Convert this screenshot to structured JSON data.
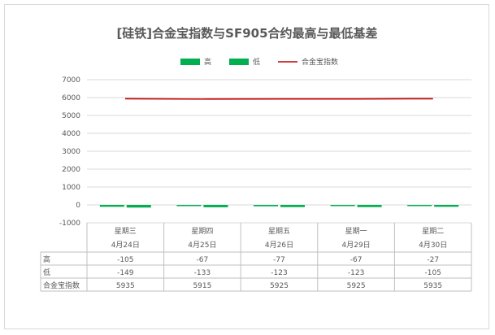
{
  "chart_data": {
    "type": "bar",
    "title": "[硅铁]合金宝指数与SF905合约最高与最低基差",
    "categories": [
      "星期三",
      "星期四",
      "星期五",
      "星期一",
      "星期二"
    ],
    "dates": [
      "4月24日",
      "4月25日",
      "4月26日",
      "4月29日",
      "4月30日"
    ],
    "series": [
      {
        "name": "高",
        "type": "bar",
        "color": "#00b050",
        "values": [
          -105,
          -67,
          -77,
          -67,
          -27
        ]
      },
      {
        "name": "低",
        "type": "bar",
        "color": "#00b050",
        "values": [
          -149,
          -133,
          -123,
          -123,
          -105
        ]
      },
      {
        "name": "合金宝指数",
        "type": "line",
        "color": "#c00000",
        "values": [
          5935,
          5915,
          5925,
          5925,
          5935
        ]
      }
    ],
    "ylim": [
      -1000,
      7000
    ],
    "yticks": [
      7000,
      6000,
      5000,
      4000,
      3000,
      2000,
      1000,
      0,
      -1000
    ],
    "grid": true,
    "legend_position": "top"
  }
}
